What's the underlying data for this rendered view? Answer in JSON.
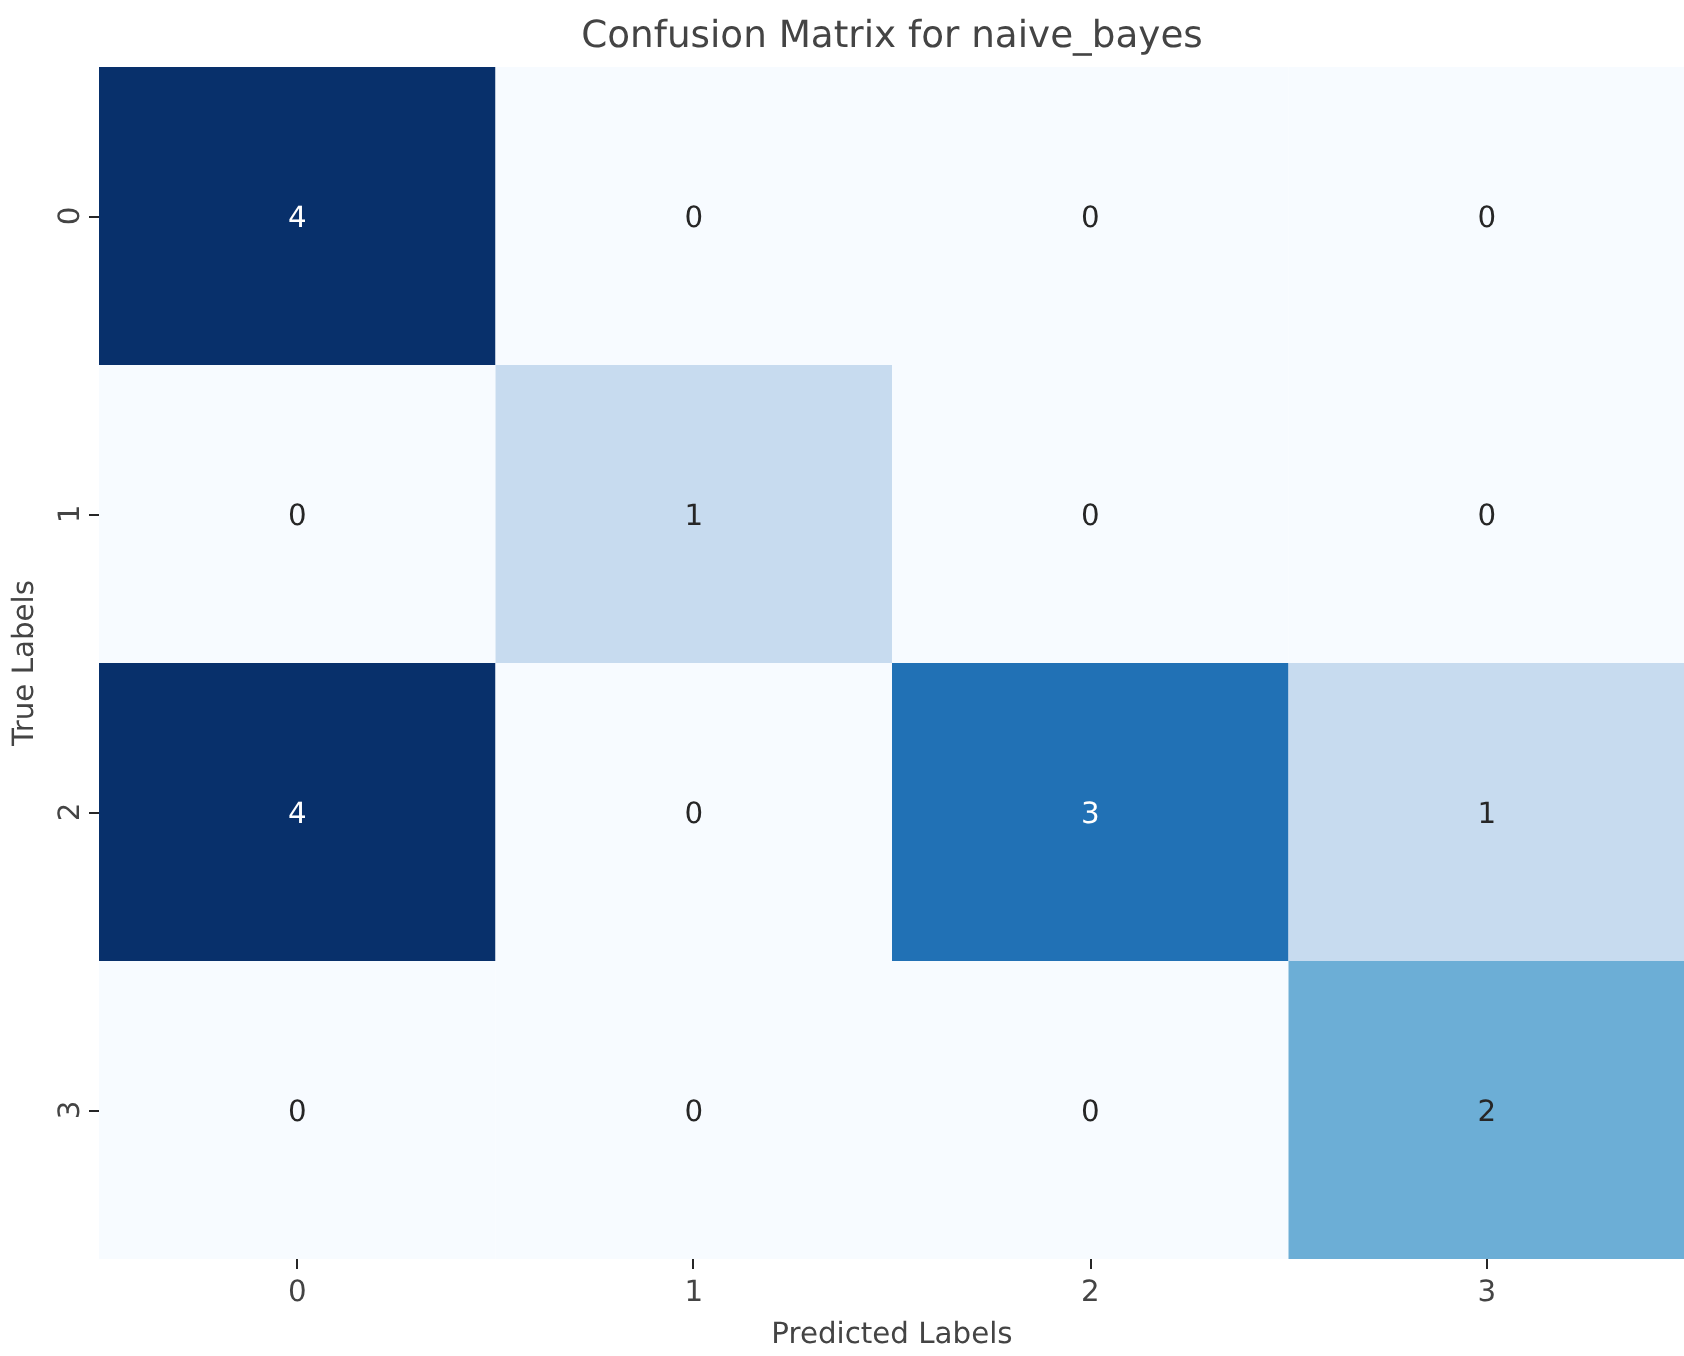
{
  "chart_data": {
    "type": "heatmap",
    "title": "Confusion Matrix for naive_bayes",
    "xlabel": "Predicted Labels",
    "ylabel": "True Labels",
    "categories": [
      "0",
      "1",
      "2",
      "3"
    ],
    "y_categories": [
      "0",
      "1",
      "2",
      "3"
    ],
    "cells": [
      [
        4,
        0,
        0,
        0
      ],
      [
        0,
        1,
        0,
        0
      ],
      [
        4,
        0,
        3,
        1
      ],
      [
        0,
        0,
        0,
        2
      ]
    ],
    "data_labels": true
  }
}
